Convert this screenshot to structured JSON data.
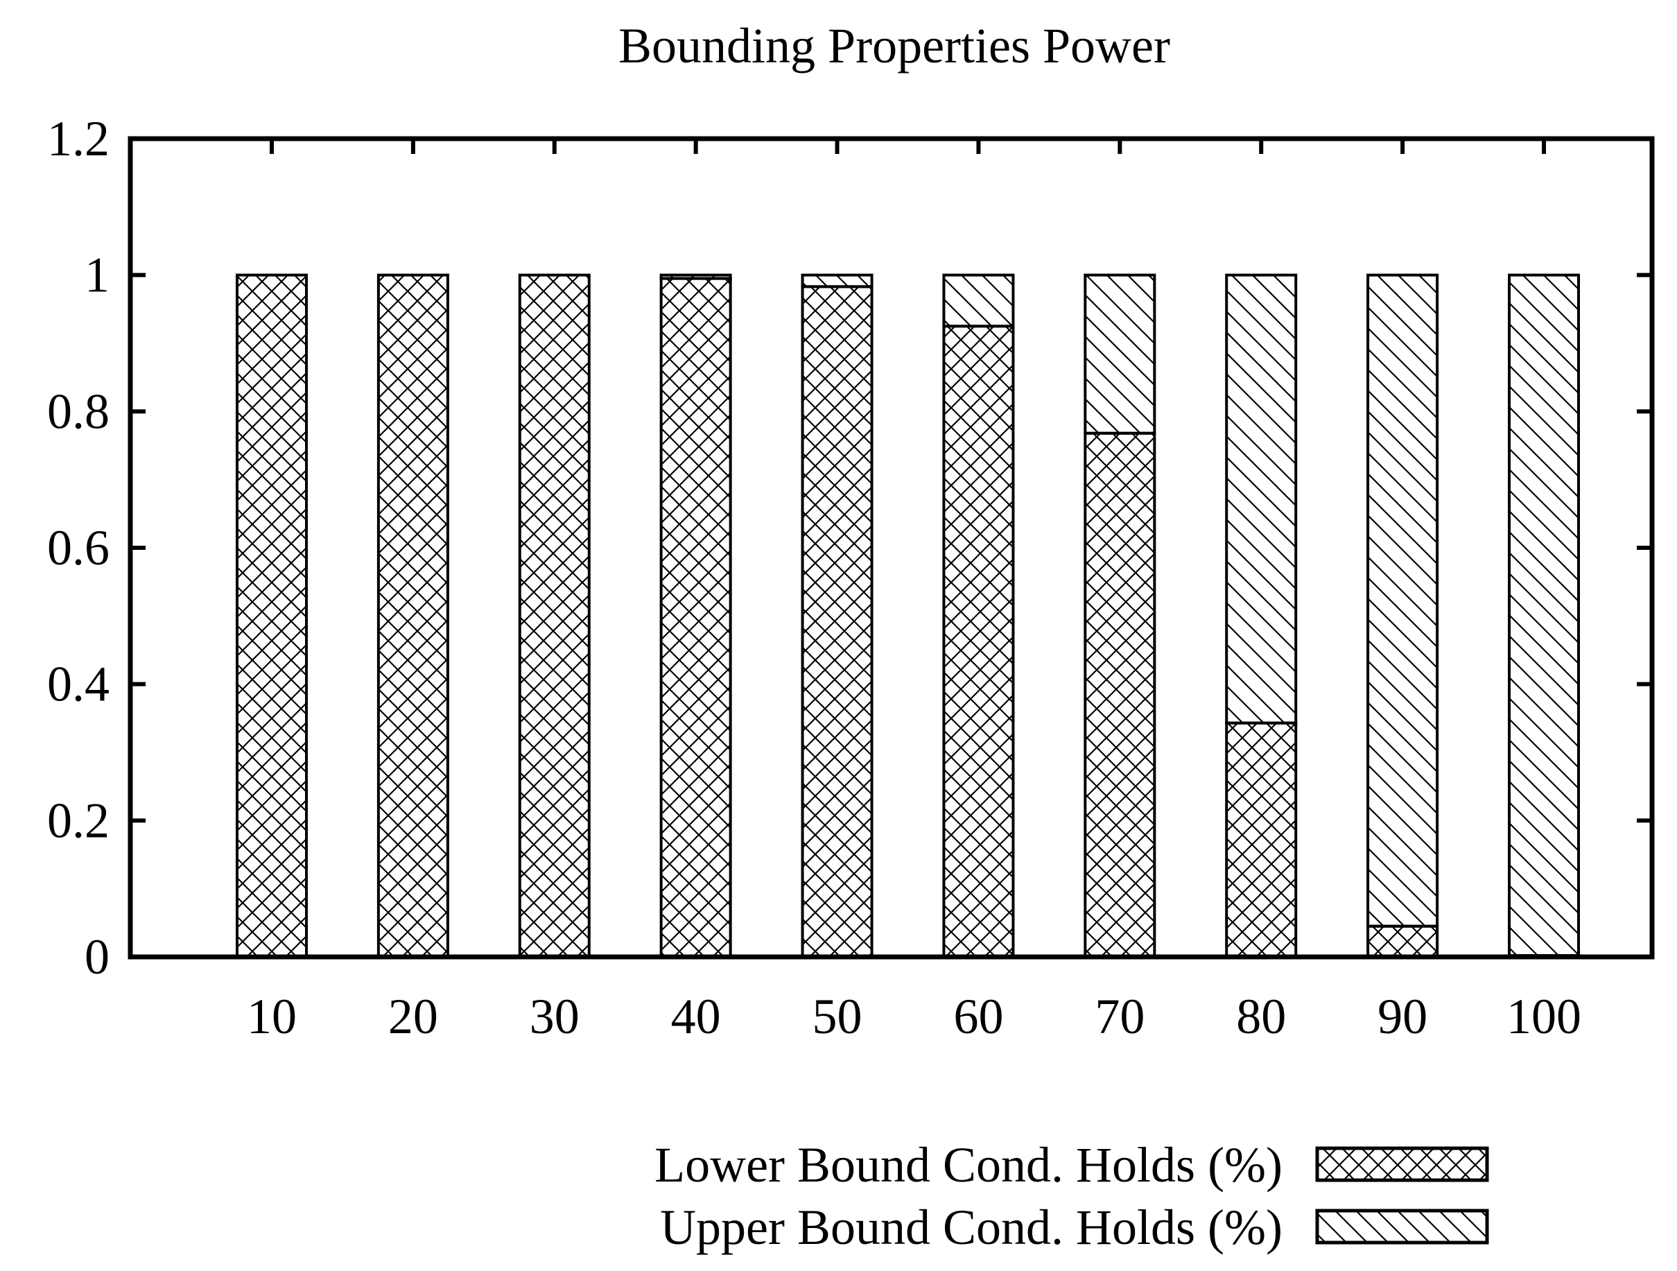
{
  "chart_data": {
    "type": "bar",
    "stacked": true,
    "title": "Bounding Properties Power",
    "xlabel": "",
    "ylabel": "",
    "ylim": [
      0,
      1.2
    ],
    "yticks": [
      "0",
      "0.2",
      "0.4",
      "0.6",
      "0.8",
      "1",
      "1.2"
    ],
    "categories": [
      "10",
      "20",
      "30",
      "40",
      "50",
      "60",
      "70",
      "80",
      "90",
      "100"
    ],
    "series": [
      {
        "name": "Lower Bound Cond. Holds (%)",
        "pattern": "crosshatch",
        "values": [
          1.0,
          1.0,
          1.0,
          0.995,
          0.983,
          0.925,
          0.768,
          0.343,
          0.045,
          0.002
        ]
      },
      {
        "name": "Upper Bound Cond. Holds (%)",
        "pattern": "diagonal",
        "values": [
          0.0,
          0.0,
          0.0,
          0.005,
          0.017,
          0.075,
          0.232,
          0.657,
          0.955,
          0.998
        ]
      }
    ],
    "legend_position": "bottom-right",
    "grid": false,
    "colors": {
      "stroke": "#000000",
      "background": "#ffffff"
    }
  }
}
